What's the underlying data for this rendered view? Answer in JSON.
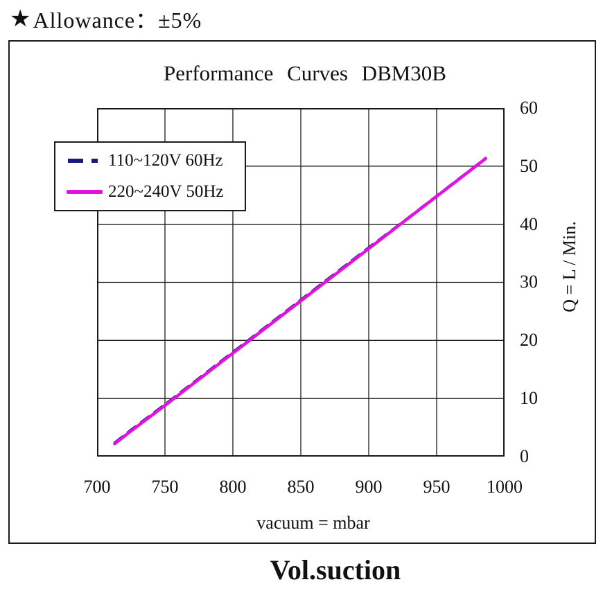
{
  "header": {
    "star_icon": "★",
    "label": "Allowance：±5%"
  },
  "footer": {
    "caption": "Vol.suction"
  },
  "chart_data": {
    "type": "line",
    "title": "Performance  Curves  DBM30B",
    "xlabel": "vacuum = mbar",
    "ylabel": "Q = L / Min.",
    "xlim": [
      700,
      1000
    ],
    "ylim": [
      0,
      60
    ],
    "x_ticks": [
      "700",
      "750",
      "800",
      "850",
      "900",
      "950",
      "1000"
    ],
    "y_ticks": [
      "0",
      "10",
      "20",
      "30",
      "40",
      "50",
      "60"
    ],
    "grid": true,
    "grid_color": "#1a1a1a",
    "legend_position": "top-left",
    "series": [
      {
        "name": "110~120V 60Hz",
        "color": "#1a1a78",
        "style": "dashed",
        "x": [
          713,
          725,
          750,
          775,
          800,
          825,
          850,
          875,
          900,
          925,
          950,
          975,
          986
        ],
        "values": [
          2.4,
          4.6,
          9.0,
          13.5,
          18.0,
          22.5,
          27.0,
          31.5,
          36.0,
          40.4,
          44.9,
          49.4,
          51.4
        ]
      },
      {
        "name": "220~240V 50Hz",
        "color": "#e013e0",
        "style": "solid",
        "x": [
          713,
          725,
          750,
          775,
          800,
          825,
          850,
          875,
          900,
          925,
          950,
          975,
          986
        ],
        "values": [
          2.2,
          4.4,
          8.8,
          13.3,
          17.8,
          22.3,
          26.8,
          31.3,
          35.8,
          40.3,
          44.8,
          49.3,
          51.3
        ]
      }
    ]
  }
}
